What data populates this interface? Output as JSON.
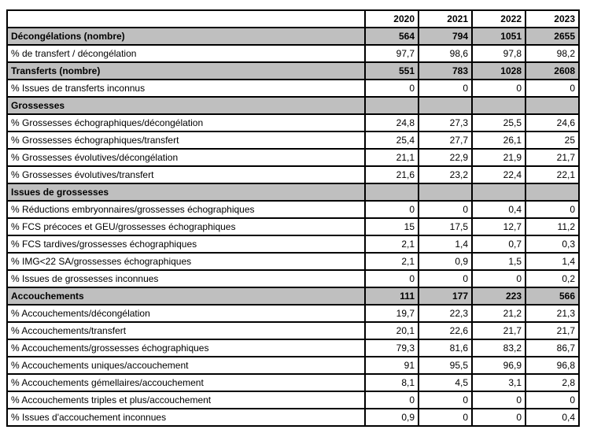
{
  "colors": {
    "section_bg": "#bfbfbf",
    "border": "#000000",
    "text": "#000000",
    "background": "#ffffff"
  },
  "table": {
    "corner_label": "",
    "years": [
      "2020",
      "2021",
      "2022",
      "2023"
    ],
    "rows": [
      {
        "type": "section",
        "label": "Décongélations (nombre)",
        "values": [
          "564",
          "794",
          "1051",
          "2655"
        ]
      },
      {
        "type": "data",
        "label": "% de transfert / décongélation",
        "values": [
          "97,7",
          "98,6",
          "97,8",
          "98,2"
        ]
      },
      {
        "type": "section",
        "label": "Transferts (nombre)",
        "values": [
          "551",
          "783",
          "1028",
          "2608"
        ]
      },
      {
        "type": "data",
        "label": "% Issues de transferts inconnus",
        "values": [
          "0",
          "0",
          "0",
          "0"
        ]
      },
      {
        "type": "section",
        "label": "Grossesses",
        "values": [
          "",
          "",
          "",
          ""
        ]
      },
      {
        "type": "data",
        "label": "% Grossesses échographiques/décongélation",
        "values": [
          "24,8",
          "27,3",
          "25,5",
          "24,6"
        ]
      },
      {
        "type": "data",
        "label": "% Grossesses échographiques/transfert",
        "values": [
          "25,4",
          "27,7",
          "26,1",
          "25"
        ]
      },
      {
        "type": "data",
        "label": "% Grossesses évolutives/décongélation",
        "values": [
          "21,1",
          "22,9",
          "21,9",
          "21,7"
        ]
      },
      {
        "type": "data",
        "label": "% Grossesses évolutives/transfert",
        "values": [
          "21,6",
          "23,2",
          "22,4",
          "22,1"
        ]
      },
      {
        "type": "section",
        "label": "Issues de grossesses",
        "values": [
          "",
          "",
          "",
          ""
        ]
      },
      {
        "type": "data",
        "label": "% Réductions embryonnaires/grossesses échographiques",
        "values": [
          "0",
          "0",
          "0,4",
          "0"
        ]
      },
      {
        "type": "data",
        "label": "% FCS précoces et GEU/grossesses échographiques",
        "values": [
          "15",
          "17,5",
          "12,7",
          "11,2"
        ]
      },
      {
        "type": "data",
        "label": "% FCS tardives/grossesses échographiques",
        "values": [
          "2,1",
          "1,4",
          "0,7",
          "0,3"
        ]
      },
      {
        "type": "data",
        "label": "% IMG<22 SA/grossesses échographiques",
        "values": [
          "2,1",
          "0,9",
          "1,5",
          "1,4"
        ]
      },
      {
        "type": "data",
        "label": "% Issues de grossesses inconnues",
        "values": [
          "0",
          "0",
          "0",
          "0,2"
        ]
      },
      {
        "type": "section",
        "label": "Accouchements",
        "values": [
          "111",
          "177",
          "223",
          "566"
        ]
      },
      {
        "type": "data",
        "label": "% Accouchements/décongélation",
        "values": [
          "19,7",
          "22,3",
          "21,2",
          "21,3"
        ]
      },
      {
        "type": "data",
        "label": "% Accouchements/transfert",
        "values": [
          "20,1",
          "22,6",
          "21,7",
          "21,7"
        ]
      },
      {
        "type": "data",
        "label": "% Accouchements/grossesses échographiques",
        "values": [
          "79,3",
          "81,6",
          "83,2",
          "86,7"
        ]
      },
      {
        "type": "data",
        "label": "% Accouchements uniques/accouchement",
        "values": [
          "91",
          "95,5",
          "96,9",
          "96,8"
        ]
      },
      {
        "type": "data",
        "label": "% Accouchements gémellaires/accouchement",
        "values": [
          "8,1",
          "4,5",
          "3,1",
          "2,8"
        ]
      },
      {
        "type": "data",
        "label": "% Accouchements triples et plus/accouchement",
        "values": [
          "0",
          "0",
          "0",
          "0"
        ]
      },
      {
        "type": "data",
        "label": "% Issues d'accouchement inconnues",
        "values": [
          "0,9",
          "0",
          "0",
          "0,4"
        ]
      }
    ]
  }
}
